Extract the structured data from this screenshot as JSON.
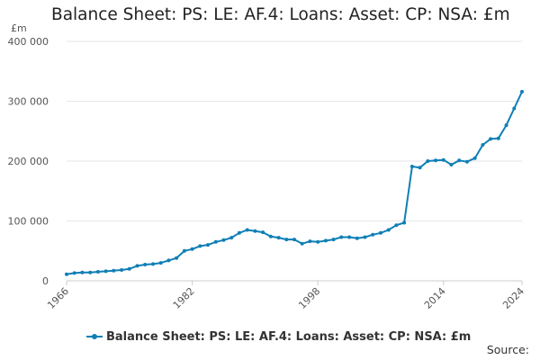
{
  "chart_data": {
    "type": "line",
    "title": "Balance Sheet: PS: LE: AF.4: Loans: Asset: CP: NSA: £m",
    "unit_label": "£m",
    "xlabel": "",
    "ylabel": "",
    "ylim": [
      0,
      400000
    ],
    "xlim": [
      1966,
      2024
    ],
    "y_ticks": [
      0,
      100000,
      200000,
      300000,
      400000
    ],
    "y_tick_labels": [
      "0",
      "100 000",
      "200 000",
      "300 000",
      "400 000"
    ],
    "x_ticks": [
      1966,
      1982,
      1998,
      2014,
      2024
    ],
    "x_tick_labels": [
      "1966",
      "1982",
      "1998",
      "2014",
      "2024"
    ],
    "grid": true,
    "legend_position": "bottom",
    "color": "#0f7fb6",
    "series": [
      {
        "name": "Balance Sheet: PS: LE: AF.4: Loans: Asset: CP: NSA: £m",
        "x": [
          1966,
          1967,
          1968,
          1969,
          1970,
          1971,
          1972,
          1973,
          1974,
          1975,
          1976,
          1977,
          1978,
          1979,
          1980,
          1981,
          1982,
          1983,
          1984,
          1985,
          1986,
          1987,
          1988,
          1989,
          1990,
          1991,
          1992,
          1993,
          1994,
          1995,
          1996,
          1997,
          1998,
          1999,
          2000,
          2001,
          2002,
          2003,
          2004,
          2005,
          2006,
          2007,
          2008,
          2009,
          2010,
          2011,
          2012,
          2013,
          2014,
          2015,
          2016,
          2017,
          2018,
          2019,
          2020,
          2021,
          2022,
          2023,
          2024
        ],
        "values": [
          11000,
          13000,
          14000,
          14000,
          15000,
          16000,
          17000,
          18000,
          20000,
          25000,
          27000,
          28000,
          30000,
          34000,
          38000,
          50000,
          53000,
          58000,
          60000,
          65000,
          68000,
          72000,
          80000,
          85000,
          83000,
          81000,
          74000,
          72000,
          69000,
          69000,
          62000,
          66000,
          65000,
          67000,
          69000,
          73000,
          73000,
          71000,
          73000,
          77000,
          80000,
          85000,
          93000,
          97000,
          191000,
          189000,
          200000,
          201000,
          202000,
          194000,
          201000,
          199000,
          205000,
          227000,
          237000,
          238000,
          260000,
          288000,
          316000
        ]
      }
    ]
  },
  "footer": {
    "source_label": "Source:"
  }
}
